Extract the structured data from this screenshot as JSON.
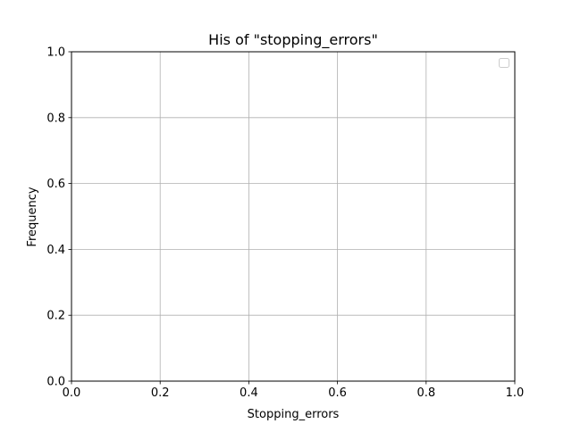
{
  "chart_data": {
    "type": "bar",
    "title": "His of \"stopping_errors\"",
    "xlabel": "Stopping_errors",
    "ylabel": "Frequency",
    "xlim": [
      0,
      1
    ],
    "ylim": [
      0,
      1
    ],
    "xticks": [
      0.0,
      0.2,
      0.4,
      0.6,
      0.8,
      1.0
    ],
    "yticks": [
      0.0,
      0.2,
      0.4,
      0.6,
      0.8,
      1.0
    ],
    "tick_format_decimals": 1,
    "grid": true,
    "legend": {
      "placement": "top-right",
      "entries": []
    },
    "series": [],
    "colors": {
      "grid": "#b0b0b0",
      "axes": "#000000",
      "legend_border": "#cccccc"
    }
  }
}
